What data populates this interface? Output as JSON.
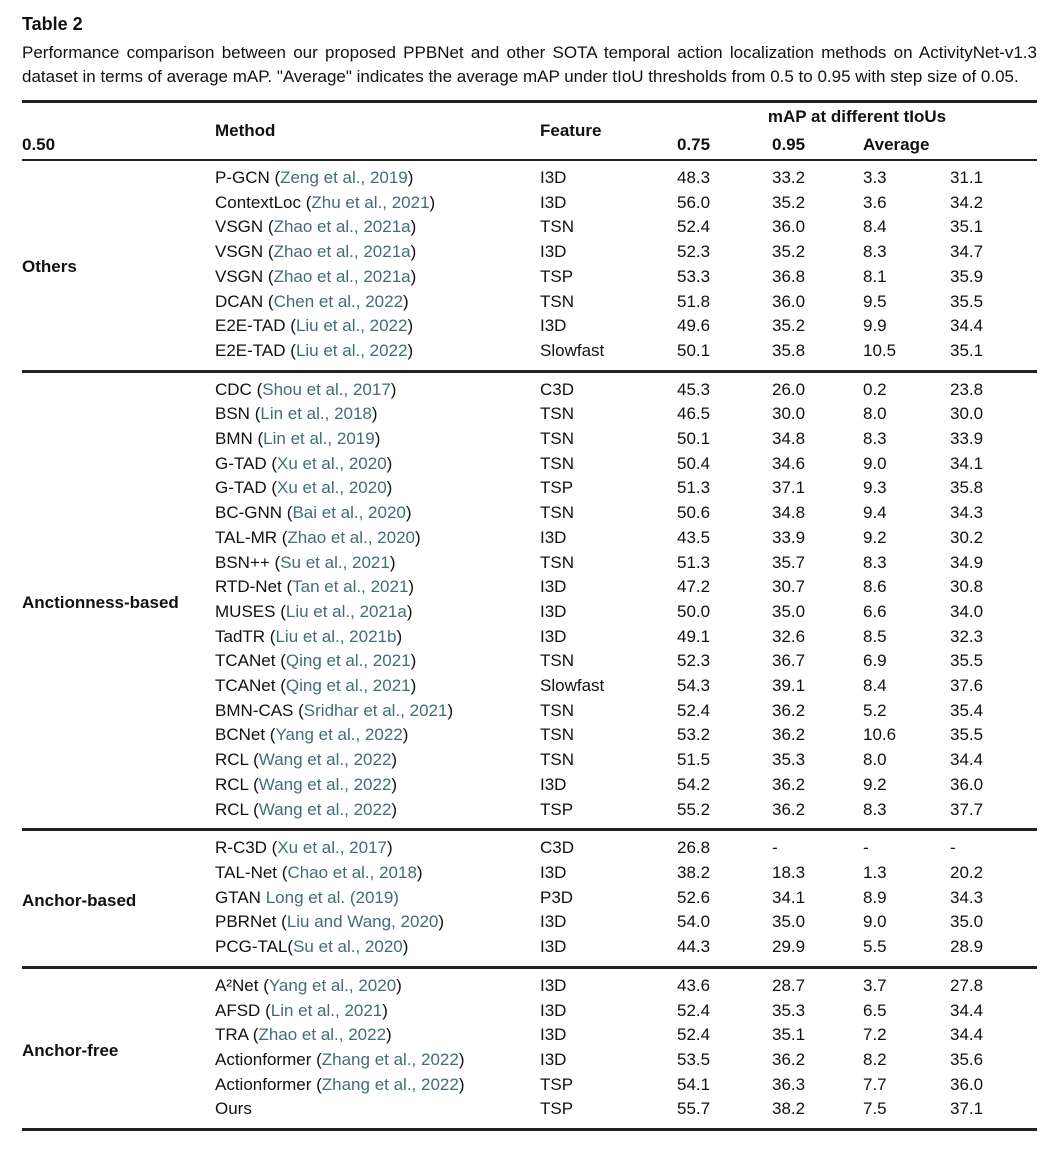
{
  "page": {
    "title": "Table 2",
    "caption": "Performance comparison between our proposed PPBNet and other SOTA temporal action localization methods on ActivityNet-v1.3 dataset in terms of average mAP. \"Average\" indicates the average mAP under tIoU thresholds from 0.5 to 0.95 with step size of 0.05."
  },
  "colors": {
    "citation_link": "#426d75",
    "text": "#111111",
    "rule": "#222222"
  },
  "table": {
    "headers": {
      "method": "Method",
      "feature": "Feature",
      "map_span": "mAP at different tIoUs",
      "tious": [
        "0.50",
        "0.75",
        "0.95",
        "Average"
      ]
    },
    "groups": [
      {
        "label": "Others",
        "rows": [
          {
            "name": "P-GCN",
            "open": " (",
            "cite": "Zeng et al., 2019",
            "close": ")",
            "feature": "I3D",
            "v": [
              "48.3",
              "33.2",
              "3.3",
              "31.1"
            ]
          },
          {
            "name": "ContextLoc",
            "open": " (",
            "cite": "Zhu et al., 2021",
            "close": ")",
            "feature": "I3D",
            "v": [
              "56.0",
              "35.2",
              "3.6",
              "34.2"
            ]
          },
          {
            "name": "VSGN",
            "open": " (",
            "cite": "Zhao et al., 2021a",
            "close": ")",
            "feature": "TSN",
            "v": [
              "52.4",
              "36.0",
              "8.4",
              "35.1"
            ]
          },
          {
            "name": "VSGN",
            "open": " (",
            "cite": "Zhao et al., 2021a",
            "close": ")",
            "feature": "I3D",
            "v": [
              "52.3",
              "35.2",
              "8.3",
              "34.7"
            ]
          },
          {
            "name": "VSGN",
            "open": " (",
            "cite": "Zhao et al., 2021a",
            "close": ")",
            "feature": "TSP",
            "v": [
              "53.3",
              "36.8",
              "8.1",
              "35.9"
            ]
          },
          {
            "name": "DCAN",
            "open": " (",
            "cite": "Chen et al., 2022",
            "close": ")",
            "feature": "TSN",
            "v": [
              "51.8",
              "36.0",
              "9.5",
              "35.5"
            ]
          },
          {
            "name": "E2E-TAD",
            "open": " (",
            "cite": "Liu et al., 2022",
            "close": ")",
            "feature": "I3D",
            "v": [
              "49.6",
              "35.2",
              "9.9",
              "34.4"
            ]
          },
          {
            "name": "E2E-TAD",
            "open": " (",
            "cite": "Liu et al., 2022",
            "close": ")",
            "feature": "Slowfast",
            "v": [
              "50.1",
              "35.8",
              "10.5",
              "35.1"
            ]
          }
        ]
      },
      {
        "label": "Anctionness-based",
        "rows": [
          {
            "name": "CDC",
            "open": " (",
            "cite": "Shou et al., 2017",
            "close": ")",
            "feature": "C3D",
            "v": [
              "45.3",
              "26.0",
              "0.2",
              "23.8"
            ]
          },
          {
            "name": "BSN",
            "open": " (",
            "cite": "Lin et al., 2018",
            "close": ")",
            "feature": "TSN",
            "v": [
              "46.5",
              "30.0",
              "8.0",
              "30.0"
            ]
          },
          {
            "name": "BMN",
            "open": " (",
            "cite": "Lin et al., 2019",
            "close": ")",
            "feature": "TSN",
            "v": [
              "50.1",
              "34.8",
              "8.3",
              "33.9"
            ]
          },
          {
            "name": "G-TAD",
            "open": " (",
            "cite": "Xu et al., 2020",
            "close": ")",
            "feature": "TSN",
            "v": [
              "50.4",
              "34.6",
              "9.0",
              "34.1"
            ]
          },
          {
            "name": "G-TAD",
            "open": " (",
            "cite": "Xu et al., 2020",
            "close": ")",
            "feature": "TSP",
            "v": [
              "51.3",
              "37.1",
              "9.3",
              "35.8"
            ]
          },
          {
            "name": "BC-GNN",
            "open": " (",
            "cite": "Bai et al., 2020",
            "close": ")",
            "feature": "TSN",
            "v": [
              "50.6",
              "34.8",
              "9.4",
              "34.3"
            ]
          },
          {
            "name": "TAL-MR",
            "open": " (",
            "cite": "Zhao et al., 2020",
            "close": ")",
            "feature": "I3D",
            "v": [
              "43.5",
              "33.9",
              "9.2",
              "30.2"
            ]
          },
          {
            "name": "BSN++",
            "open": " (",
            "cite": "Su et al., 2021",
            "close": ")",
            "feature": "TSN",
            "v": [
              "51.3",
              "35.7",
              "8.3",
              "34.9"
            ]
          },
          {
            "name": "RTD-Net",
            "open": " (",
            "cite": "Tan et al., 2021",
            "close": ")",
            "feature": "I3D",
            "v": [
              "47.2",
              "30.7",
              "8.6",
              "30.8"
            ]
          },
          {
            "name": "MUSES",
            "open": " (",
            "cite": "Liu et al., 2021a",
            "close": ")",
            "feature": "I3D",
            "v": [
              "50.0",
              "35.0",
              "6.6",
              "34.0"
            ]
          },
          {
            "name": "TadTR",
            "open": " (",
            "cite": "Liu et al., 2021b",
            "close": ")",
            "feature": "I3D",
            "v": [
              "49.1",
              "32.6",
              "8.5",
              "32.3"
            ]
          },
          {
            "name": "TCANet",
            "open": " (",
            "cite": "Qing et al., 2021",
            "close": ")",
            "feature": "TSN",
            "v": [
              "52.3",
              "36.7",
              "6.9",
              "35.5"
            ]
          },
          {
            "name": "TCANet",
            "open": " (",
            "cite": "Qing et al., 2021",
            "close": ")",
            "feature": "Slowfast",
            "v": [
              "54.3",
              "39.1",
              "8.4",
              "37.6"
            ]
          },
          {
            "name": "BMN-CAS",
            "open": " (",
            "cite": "Sridhar et al., 2021",
            "close": ")",
            "feature": "TSN",
            "v": [
              "52.4",
              "36.2",
              "5.2",
              "35.4"
            ]
          },
          {
            "name": "BCNet",
            "open": " (",
            "cite": "Yang et al., 2022",
            "close": ")",
            "feature": "TSN",
            "v": [
              "53.2",
              "36.2",
              "10.6",
              "35.5"
            ]
          },
          {
            "name": "RCL",
            "open": " (",
            "cite": "Wang et al., 2022",
            "close": ")",
            "feature": "TSN",
            "v": [
              "51.5",
              "35.3",
              "8.0",
              "34.4"
            ]
          },
          {
            "name": "RCL",
            "open": " (",
            "cite": "Wang et al., 2022",
            "close": ")",
            "feature": "I3D",
            "v": [
              "54.2",
              "36.2",
              "9.2",
              "36.0"
            ]
          },
          {
            "name": "RCL",
            "open": " (",
            "cite": "Wang et al., 2022",
            "close": ")",
            "feature": "TSP",
            "v": [
              "55.2",
              "36.2",
              "8.3",
              "37.7"
            ]
          }
        ]
      },
      {
        "label": "Anchor-based",
        "rows": [
          {
            "name": "R-C3D",
            "open": " (",
            "cite": "Xu et al., 2017",
            "close": ")",
            "feature": "C3D",
            "v": [
              "26.8",
              "-",
              "-",
              "-"
            ]
          },
          {
            "name": "TAL-Net",
            "open": " (",
            "cite": "Chao et al., 2018",
            "close": ")",
            "feature": "I3D",
            "v": [
              "38.2",
              "18.3",
              "1.3",
              "20.2"
            ]
          },
          {
            "name": "GTAN",
            "open": " ",
            "cite": "Long et al. (2019)",
            "close": "",
            "feature": "P3D",
            "v": [
              "52.6",
              "34.1",
              "8.9",
              "34.3"
            ]
          },
          {
            "name": "PBRNet",
            "open": " (",
            "cite": "Liu and Wang, 2020",
            "close": ")",
            "feature": "I3D",
            "v": [
              "54.0",
              "35.0",
              "9.0",
              "35.0"
            ]
          },
          {
            "name": "PCG-TAL",
            "open": "(",
            "cite": "Su et al., 2020",
            "close": ")",
            "feature": "I3D",
            "v": [
              "44.3",
              "29.9",
              "5.5",
              "28.9"
            ]
          }
        ]
      },
      {
        "label": "Anchor-free",
        "rows": [
          {
            "name": "A²Net",
            "open": " (",
            "cite": "Yang et al., 2020",
            "close": ")",
            "feature": "I3D",
            "v": [
              "43.6",
              "28.7",
              "3.7",
              "27.8"
            ]
          },
          {
            "name": "AFSD",
            "open": " (",
            "cite": "Lin et al., 2021",
            "close": ")",
            "feature": "I3D",
            "v": [
              "52.4",
              "35.3",
              "6.5",
              "34.4"
            ]
          },
          {
            "name": "TRA",
            "open": " (",
            "cite": "Zhao et al., 2022",
            "close": ")",
            "feature": "I3D",
            "v": [
              "52.4",
              "35.1",
              "7.2",
              "34.4"
            ]
          },
          {
            "name": "Actionformer",
            "open": " (",
            "cite": "Zhang et al., 2022",
            "close": ")",
            "feature": "I3D",
            "v": [
              "53.5",
              "36.2",
              "8.2",
              "35.6"
            ]
          },
          {
            "name": "Actionformer",
            "open": " (",
            "cite": "Zhang et al., 2022",
            "close": ")",
            "feature": "TSP",
            "v": [
              "54.1",
              "36.3",
              "7.7",
              "36.0"
            ]
          },
          {
            "name": "Ours",
            "open": "",
            "cite": "",
            "close": "",
            "feature": "TSP",
            "v": [
              "55.7",
              "38.2",
              "7.5",
              "37.1"
            ]
          }
        ]
      }
    ]
  }
}
